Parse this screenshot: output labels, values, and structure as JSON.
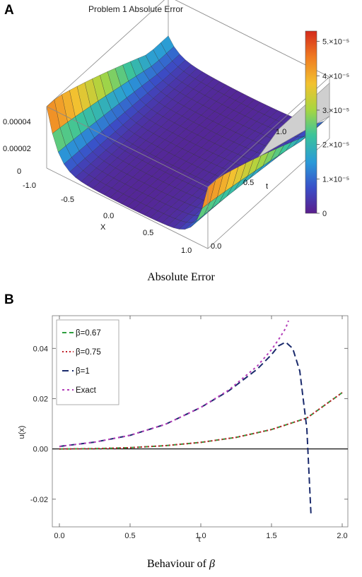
{
  "panel_a": {
    "letter": "A",
    "caption": "Absolute Error"
  },
  "panel_b": {
    "letter": "B",
    "caption_prefix": "Behaviour of ",
    "caption_symbol": "β"
  },
  "chart_data": [
    {
      "type": "surface3d",
      "title": "Problem 1 Absolute Error",
      "xlabel": "X",
      "ylabel": "t",
      "x_ticks": [
        "-1.0",
        "-0.5",
        "0.0",
        "0.5",
        "1.0"
      ],
      "t_ticks": [
        "0.0",
        "0.5",
        "1.0"
      ],
      "z_ticks": [
        "0",
        "0.00002",
        "0.00004"
      ],
      "x_range": [
        -1,
        1
      ],
      "t_range": [
        0,
        1.2
      ],
      "z_max_plotted": 4e-05,
      "z_peak": 5.2e-05,
      "colorbar": {
        "ticks": [
          {
            "value": 0,
            "label": "0"
          },
          {
            "value": 1e-05,
            "label": "1.×10⁻⁵"
          },
          {
            "value": 2e-05,
            "label": "2.×10⁻⁵"
          },
          {
            "value": 3e-05,
            "label": "3.×10⁻⁵"
          },
          {
            "value": 4e-05,
            "label": "4.×10⁻⁵"
          },
          {
            "value": 5e-05,
            "label": "5.×10⁻⁵"
          }
        ],
        "range": [
          0,
          5.3e-05
        ],
        "colors": [
          "#5a1e8c",
          "#3a4fc8",
          "#2a9ad8",
          "#3cc49a",
          "#a8d640",
          "#f2c230",
          "#ef7a22",
          "#d42a1c"
        ]
      },
      "grid": false
    },
    {
      "type": "line",
      "xlabel": "t",
      "ylabel": "u(x)",
      "xlim": [
        0,
        2.0
      ],
      "ylim": [
        -0.03,
        0.05
      ],
      "x_ticks": [
        "0.0",
        "0.5",
        "1.0",
        "1.5",
        "2.0"
      ],
      "y_ticks": [
        "-0.02",
        "0.00",
        "0.02",
        "0.04"
      ],
      "legend_position": "top-left",
      "series": [
        {
          "name": "β=0.67",
          "color": "#2e9e3e",
          "dash": "6,4",
          "x": [
            0,
            0.25,
            0.5,
            0.75,
            1.0,
            1.25,
            1.5,
            1.75,
            2.0
          ],
          "y": [
            0.0,
            0.0001,
            0.0005,
            0.0013,
            0.0026,
            0.0046,
            0.0077,
            0.0123,
            0.0224
          ]
        },
        {
          "name": "β=0.75",
          "color": "#c0222a",
          "dash": "2,3",
          "x": [
            0,
            0.25,
            0.5,
            0.75,
            1.0,
            1.25,
            1.5,
            1.75,
            2.0
          ],
          "y": [
            0.0,
            0.0001,
            0.0005,
            0.0013,
            0.0026,
            0.0046,
            0.0077,
            0.0123,
            0.0224
          ]
        },
        {
          "name": "β=1",
          "color": "#1a2a6c",
          "dash": "9,5",
          "x": [
            0,
            0.25,
            0.5,
            0.75,
            1.0,
            1.2,
            1.4,
            1.5,
            1.55,
            1.6,
            1.65,
            1.7,
            1.75,
            1.78
          ],
          "y": [
            0.001,
            0.0027,
            0.0054,
            0.0098,
            0.0165,
            0.0232,
            0.0318,
            0.0375,
            0.041,
            0.0425,
            0.04,
            0.031,
            0.008,
            -0.027
          ]
        },
        {
          "name": "Exact",
          "color": "#b23cb8",
          "dash": "3,4",
          "x": [
            0,
            0.25,
            0.5,
            0.75,
            1.0,
            1.2,
            1.4,
            1.5,
            1.55,
            1.6,
            1.62
          ],
          "y": [
            0.001,
            0.0027,
            0.0054,
            0.0098,
            0.0165,
            0.0235,
            0.033,
            0.0395,
            0.0435,
            0.048,
            0.051
          ]
        }
      ]
    }
  ]
}
